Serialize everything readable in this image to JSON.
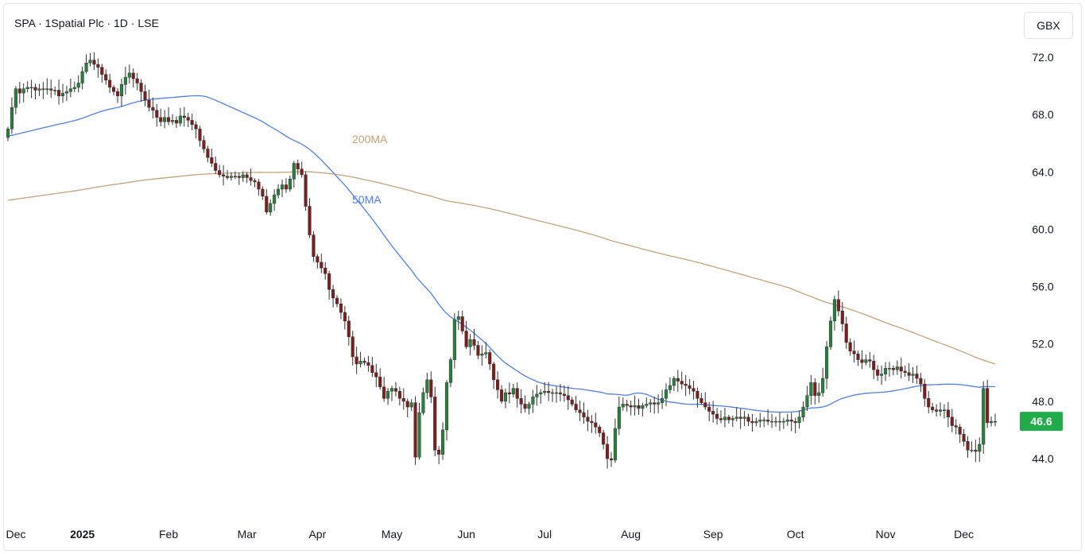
{
  "header": {
    "title": "SPA · 1Spatial Plc · 1D · LSE",
    "currency": "GBX"
  },
  "chart_data": {
    "type": "candlestick",
    "title": "SPA · 1Spatial Plc · 1D · LSE",
    "currency": "GBX",
    "y_ticks": [
      "72.0",
      "68.0",
      "64.0",
      "60.0",
      "56.0",
      "52.0",
      "48.0",
      "44.0"
    ],
    "ylim": [
      40.3,
      75.4
    ],
    "x_labels": [
      {
        "label": "Dec",
        "index": 0
      },
      {
        "label": "2025",
        "index": 19
      },
      {
        "label": "Feb",
        "index": 41
      },
      {
        "label": "Mar",
        "index": 61
      },
      {
        "label": "Apr",
        "index": 79
      },
      {
        "label": "May",
        "index": 98
      },
      {
        "label": "Jun",
        "index": 117
      },
      {
        "label": "Jul",
        "index": 137
      },
      {
        "label": "Aug",
        "index": 159
      },
      {
        "label": "Sep",
        "index": 180
      },
      {
        "label": "Oct",
        "index": 201
      },
      {
        "label": "Nov",
        "index": 224
      },
      {
        "label": "Dec",
        "index": 244
      }
    ],
    "last_price": "46.6",
    "last_price_color": "#22ab4a",
    "up_color": "#26823a",
    "down_color": "#7f1d1d",
    "grid": false,
    "closes": [
      67.0,
      68.5,
      69.8,
      69.5,
      69.8,
      69.9,
      69.9,
      69.7,
      69.8,
      69.8,
      69.8,
      69.7,
      69.7,
      69.3,
      69.5,
      69.6,
      69.8,
      69.9,
      70.2,
      71.0,
      71.6,
      71.8,
      71.5,
      71.3,
      70.8,
      70.4,
      69.9,
      69.6,
      69.3,
      70.1,
      70.6,
      70.9,
      70.5,
      70.2,
      69.6,
      69.0,
      68.5,
      68.3,
      67.8,
      67.5,
      67.8,
      67.5,
      67.6,
      67.4,
      67.9,
      67.8,
      67.6,
      67.3,
      67.0,
      66.2,
      65.6,
      65.0,
      64.6,
      64.1,
      63.8,
      63.7,
      63.6,
      63.7,
      63.7,
      63.6,
      63.8,
      63.6,
      63.4,
      63.3,
      62.8,
      62.3,
      61.2,
      61.8,
      62.4,
      62.8,
      63.1,
      62.8,
      63.5,
      64.6,
      64.2,
      63.8,
      61.6,
      59.6,
      58.1,
      57.7,
      57.3,
      56.9,
      55.8,
      55.2,
      54.8,
      54.2,
      53.6,
      52.5,
      51.1,
      50.6,
      50.8,
      50.7,
      50.5,
      50.0,
      49.7,
      49.0,
      48.2,
      48.7,
      48.9,
      48.7,
      48.2,
      48.0,
      47.6,
      47.9,
      44.1,
      47.2,
      48.6,
      49.5,
      48.3,
      44.6,
      44.3,
      46.0,
      49.3,
      50.9,
      53.7,
      53.9,
      52.9,
      51.8,
      52.3,
      51.9,
      51.2,
      51.3,
      51.4,
      50.6,
      49.5,
      48.8,
      48.0,
      48.6,
      48.5,
      48.9,
      48.2,
      47.8,
      47.5,
      47.8,
      48.3,
      48.5,
      48.6,
      48.7,
      48.6,
      48.6,
      48.6,
      48.5,
      48.4,
      48.1,
      47.8,
      47.4,
      47.2,
      46.9,
      46.6,
      46.5,
      46.2,
      45.8,
      45.0,
      44.0,
      43.9,
      46.1,
      47.6,
      47.8,
      47.7,
      47.6,
      47.7,
      47.5,
      47.7,
      47.8,
      47.9,
      47.8,
      47.9,
      48.2,
      48.8,
      49.1,
      49.6,
      49.4,
      49.2,
      49.1,
      48.9,
      48.7,
      48.2,
      47.9,
      47.6,
      47.3,
      47.1,
      46.8,
      46.7,
      46.9,
      46.7,
      46.8,
      46.9,
      46.8,
      46.9,
      46.6,
      46.5,
      46.6,
      46.7,
      46.7,
      46.6,
      46.6,
      46.6,
      46.6,
      46.6,
      46.7,
      46.6,
      46.5,
      46.9,
      47.6,
      48.4,
      49.3,
      48.4,
      48.6,
      49.6,
      51.8,
      53.6,
      55.1,
      54.3,
      53.4,
      52.1,
      51.5,
      51.3,
      50.9,
      50.7,
      50.9,
      50.8,
      50.2,
      49.8,
      49.9,
      50.3,
      50.3,
      50.2,
      50.4,
      50.1,
      50.0,
      49.8,
      49.9,
      49.6,
      49.2,
      48.2,
      47.6,
      47.4,
      47.3,
      47.4,
      47.4,
      46.9,
      46.3,
      46.2,
      45.7,
      45.2,
      44.6,
      44.6,
      44.5,
      45.0,
      48.9,
      46.5,
      46.6,
      46.6
    ]
  }
}
